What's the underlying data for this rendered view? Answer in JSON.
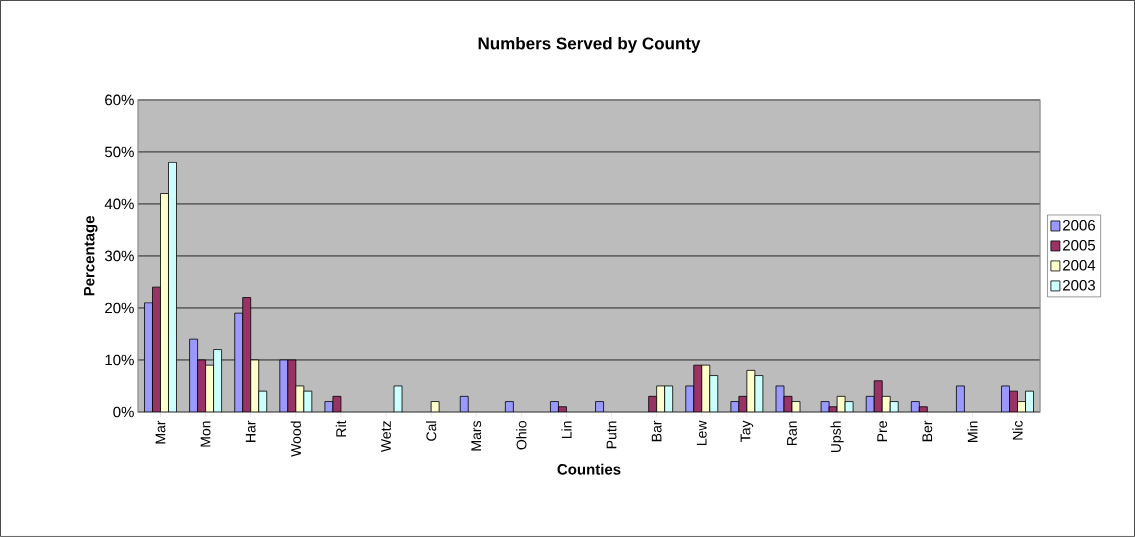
{
  "chart_data": {
    "type": "bar",
    "title": "Numbers Served by County",
    "xlabel": "Counties",
    "ylabel": "Percentage",
    "categories": [
      "Mar",
      "Mon",
      "Har",
      "Wood",
      "Rit",
      "Wetz",
      "Cal",
      "Mars",
      "Ohio",
      "Lin",
      "Putn",
      "Bar",
      "Lew",
      "Tay",
      "Ran",
      "Upsh",
      "Pre",
      "Ber",
      "Min",
      "Nic"
    ],
    "series": [
      {
        "name": "2006",
        "color": "#9999ff",
        "values": [
          21,
          14,
          19,
          10,
          2,
          null,
          null,
          3,
          2,
          2,
          2,
          null,
          5,
          2,
          5,
          2,
          3,
          2,
          5,
          5
        ]
      },
      {
        "name": "2005",
        "color": "#993366",
        "values": [
          24,
          10,
          22,
          10,
          3,
          null,
          null,
          null,
          null,
          1,
          null,
          3,
          9,
          3,
          3,
          1,
          6,
          1,
          null,
          4
        ]
      },
      {
        "name": "2004",
        "color": "#ffffcc",
        "values": [
          42,
          9,
          10,
          5,
          null,
          null,
          2,
          null,
          null,
          null,
          null,
          5,
          9,
          8,
          2,
          3,
          3,
          null,
          null,
          2
        ]
      },
      {
        "name": "2003",
        "color": "#ccffff",
        "values": [
          48,
          12,
          4,
          4,
          null,
          5,
          null,
          null,
          null,
          null,
          null,
          5,
          7,
          7,
          null,
          2,
          2,
          null,
          null,
          4
        ]
      }
    ],
    "ylim": [
      0,
      60
    ],
    "yticks": [
      {
        "value": 0,
        "label": "0%"
      },
      {
        "value": 10,
        "label": "10%"
      },
      {
        "value": 20,
        "label": "20%"
      },
      {
        "value": 30,
        "label": "30%"
      },
      {
        "value": 40,
        "label": "40%"
      },
      {
        "value": 50,
        "label": "50%"
      },
      {
        "value": 60,
        "label": "60%"
      }
    ],
    "grid": "y",
    "legend": "right"
  }
}
